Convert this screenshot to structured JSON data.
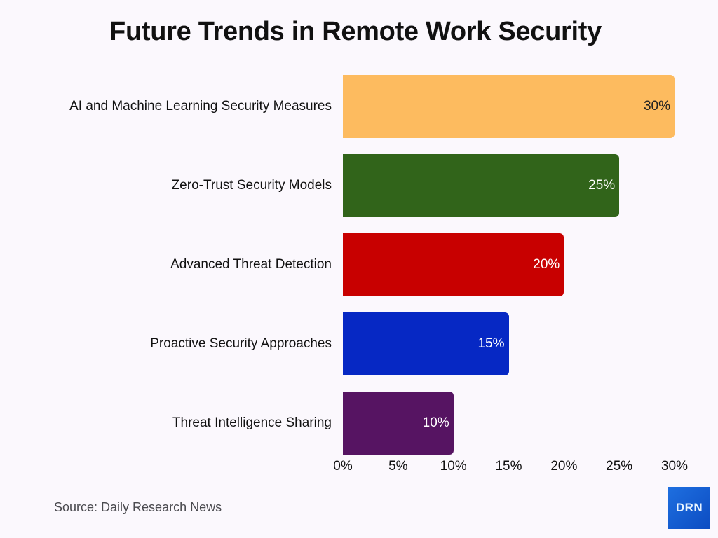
{
  "title": "Future Trends in Remote Work Security",
  "source": "Source: Daily Research News",
  "logo": {
    "text": "DRN",
    "color": "#1a5fd6"
  },
  "x_ticks": [
    "0%",
    "5%",
    "10%",
    "15%",
    "20%",
    "25%",
    "30%"
  ],
  "bars": [
    {
      "label": "AI and Machine Learning Security Measures",
      "value": 30,
      "value_label": "30%",
      "color": "#fdbb5f",
      "text_dark": true
    },
    {
      "label": "Zero-Trust Security Models",
      "value": 25,
      "value_label": "25%",
      "color": "#31641a",
      "text_dark": false
    },
    {
      "label": "Advanced Threat Detection",
      "value": 20,
      "value_label": "20%",
      "color": "#c80000",
      "text_dark": false
    },
    {
      "label": "Proactive Security Approaches",
      "value": 15,
      "value_label": "15%",
      "color": "#0628c4",
      "text_dark": false
    },
    {
      "label": "Threat Intelligence Sharing",
      "value": 10,
      "value_label": "10%",
      "color": "#561462",
      "text_dark": false
    }
  ],
  "chart_data": {
    "type": "bar",
    "orientation": "horizontal",
    "title": "Future Trends in Remote Work Security",
    "categories": [
      "AI and Machine Learning Security Measures",
      "Zero-Trust Security Models",
      "Advanced Threat Detection",
      "Proactive Security Approaches",
      "Threat Intelligence Sharing"
    ],
    "values": [
      30,
      25,
      20,
      15,
      10
    ],
    "value_labels": [
      "30%",
      "25%",
      "20%",
      "15%",
      "10%"
    ],
    "colors": [
      "#fdbb5f",
      "#31641a",
      "#c80000",
      "#0628c4",
      "#561462"
    ],
    "xlabel": "",
    "ylabel": "",
    "xlim": [
      0,
      30
    ],
    "x_ticks": [
      "0%",
      "5%",
      "10%",
      "15%",
      "20%",
      "25%",
      "30%"
    ],
    "grid": false,
    "legend": null,
    "annotations": [
      "Source: Daily Research News",
      "DRN"
    ]
  }
}
